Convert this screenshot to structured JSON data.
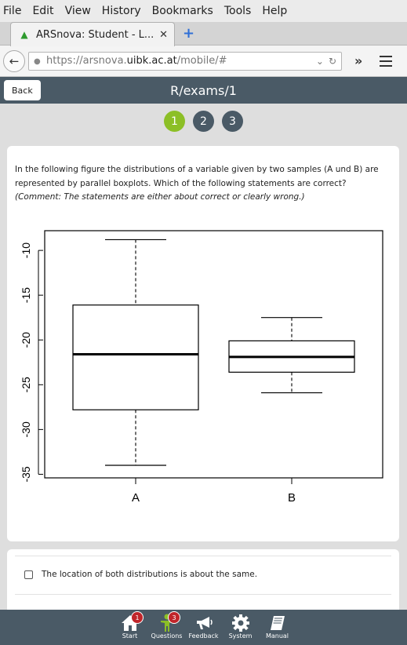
{
  "browser": {
    "menu": [
      "File",
      "Edit",
      "View",
      "History",
      "Bookmarks",
      "Tools",
      "Help"
    ],
    "tab_title": "ARSnova: Student - L...",
    "url_scheme": "https://arsnova.",
    "url_host": "uibk.ac.at",
    "url_path": "/mobile/#"
  },
  "app": {
    "back_label": "Back",
    "title": "R/exams/1",
    "steps": [
      "1",
      "2",
      "3"
    ],
    "active_step": 1
  },
  "question": {
    "text": "In the following figure the distributions of a variable given by two samples (A und B) are represented by parallel boxplots. Which of the following statements are correct?",
    "comment": "(Comment: The statements are either about correct or clearly wrong.)"
  },
  "chart_data": {
    "type": "boxplot",
    "categories": [
      "A",
      "B"
    ],
    "series": [
      {
        "name": "A",
        "whisker_low": -34,
        "q1": -27.8,
        "median": -21.6,
        "q3": -16.1,
        "whisker_high": -8.8
      },
      {
        "name": "B",
        "whisker_low": -25.9,
        "q1": -23.6,
        "median": -21.9,
        "q3": -20.1,
        "whisker_high": -17.5
      }
    ],
    "y_ticks": [
      -10,
      -15,
      -20,
      -25,
      -30,
      -35
    ],
    "ylim": [
      -35.4,
      -7.8
    ],
    "grid": false
  },
  "answers": [
    {
      "label": "The location of both distributions is about the same."
    }
  ],
  "footer": {
    "items": [
      {
        "label": "Start",
        "icon": "home-icon",
        "badge": "1"
      },
      {
        "label": "Questions",
        "icon": "person-icon",
        "badge": "3"
      },
      {
        "label": "Feedback",
        "icon": "megaphone-icon",
        "badge": ""
      },
      {
        "label": "System",
        "icon": "gear-icon",
        "badge": ""
      },
      {
        "label": "Manual",
        "icon": "book-icon",
        "badge": ""
      }
    ]
  },
  "colors": {
    "header": "#4a5a66",
    "active_step": "#8cbf26",
    "badge": "#c0252a"
  }
}
